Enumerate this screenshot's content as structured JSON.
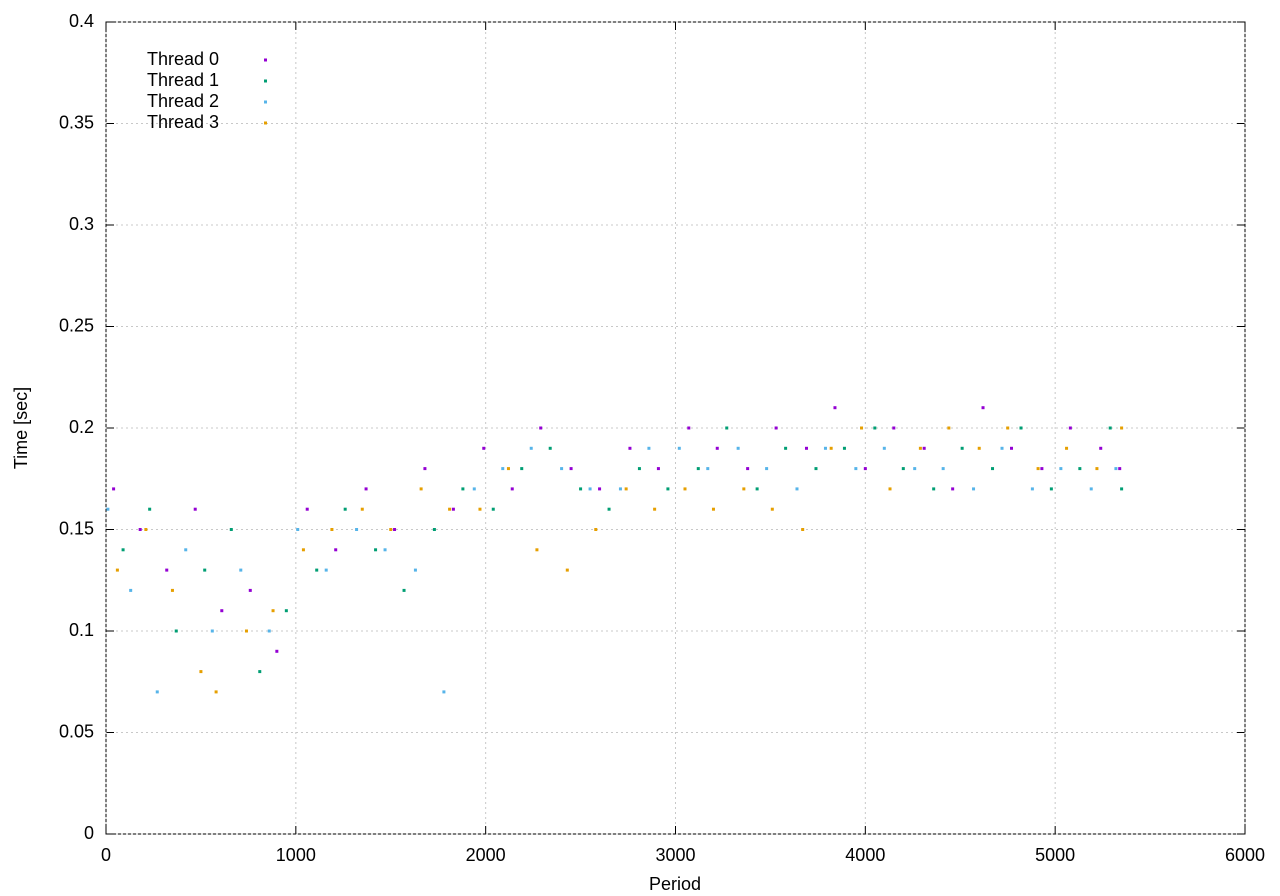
{
  "chart_data": {
    "type": "scatter",
    "xlabel": "Period",
    "ylabel": "Time [sec]",
    "xlim": [
      0,
      6000
    ],
    "xticks": [
      0,
      1000,
      2000,
      3000,
      4000,
      5000,
      6000
    ],
    "ylim": [
      0,
      0.4
    ],
    "yticks": [
      0,
      0.05,
      0.1,
      0.15,
      0.2,
      0.25,
      0.3,
      0.35,
      0.4
    ],
    "grid": true,
    "legend": "top-left",
    "series": [
      {
        "name": "Thread 0",
        "color": "#9400d3",
        "x": [
          40,
          180,
          320,
          470,
          610,
          760,
          900,
          1060,
          1210,
          1370,
          1520,
          1680,
          1830,
          1990,
          2140,
          2290,
          2450,
          2600,
          2760,
          2910,
          3070,
          3220,
          3380,
          3530,
          3690,
          3840,
          4000,
          4150,
          4310,
          4460,
          4620,
          4770,
          4930,
          5080,
          5240,
          5340
        ],
        "values": [
          0.17,
          0.15,
          0.13,
          0.16,
          0.11,
          0.12,
          0.09,
          0.16,
          0.14,
          0.17,
          0.15,
          0.18,
          0.16,
          0.19,
          0.17,
          0.2,
          0.18,
          0.17,
          0.19,
          0.18,
          0.2,
          0.19,
          0.18,
          0.2,
          0.19,
          0.21,
          0.18,
          0.2,
          0.19,
          0.17,
          0.21,
          0.19,
          0.18,
          0.2,
          0.19,
          0.18
        ]
      },
      {
        "name": "Thread 1",
        "color": "#009e73",
        "x": [
          90,
          230,
          370,
          520,
          660,
          810,
          950,
          1110,
          1260,
          1420,
          1570,
          1730,
          1880,
          2040,
          2190,
          2340,
          2500,
          2650,
          2810,
          2960,
          3120,
          3270,
          3430,
          3580,
          3740,
          3890,
          4050,
          4200,
          4360,
          4510,
          4670,
          4820,
          4980,
          5130,
          5290,
          5350
        ],
        "values": [
          0.14,
          0.16,
          0.1,
          0.13,
          0.15,
          0.08,
          0.11,
          0.13,
          0.16,
          0.14,
          0.12,
          0.15,
          0.17,
          0.16,
          0.18,
          0.19,
          0.17,
          0.16,
          0.18,
          0.17,
          0.18,
          0.2,
          0.17,
          0.19,
          0.18,
          0.19,
          0.2,
          0.18,
          0.17,
          0.19,
          0.18,
          0.2,
          0.17,
          0.18,
          0.2,
          0.17
        ]
      },
      {
        "name": "Thread 2",
        "color": "#56b4e9",
        "x": [
          10,
          130,
          270,
          420,
          560,
          710,
          860,
          1010,
          1160,
          1320,
          1470,
          1630,
          1780,
          1940,
          2090,
          2240,
          2400,
          2550,
          2710,
          2860,
          3020,
          3170,
          3330,
          3480,
          3640,
          3790,
          3950,
          4100,
          4260,
          4410,
          4570,
          4720,
          4880,
          5030,
          5190,
          5320
        ],
        "values": [
          0.16,
          0.12,
          0.07,
          0.14,
          0.1,
          0.13,
          0.1,
          0.15,
          0.13,
          0.15,
          0.14,
          0.13,
          0.07,
          0.17,
          0.18,
          0.19,
          0.18,
          0.17,
          0.17,
          0.19,
          0.19,
          0.18,
          0.19,
          0.18,
          0.17,
          0.19,
          0.18,
          0.19,
          0.18,
          0.18,
          0.17,
          0.19,
          0.17,
          0.18,
          0.17,
          0.18
        ]
      },
      {
        "name": "Thread 3",
        "color": "#e69f00",
        "x": [
          60,
          210,
          350,
          500,
          580,
          740,
          880,
          1040,
          1190,
          1350,
          1500,
          1660,
          1810,
          1970,
          2120,
          2270,
          2430,
          2580,
          2740,
          2890,
          3050,
          3200,
          3360,
          3510,
          3670,
          3820,
          3980,
          4130,
          4290,
          4440,
          4600,
          4750,
          4910,
          5060,
          5220,
          5350
        ],
        "values": [
          0.13,
          0.15,
          0.12,
          0.08,
          0.07,
          0.1,
          0.11,
          0.14,
          0.15,
          0.16,
          0.15,
          0.17,
          0.16,
          0.16,
          0.18,
          0.14,
          0.13,
          0.15,
          0.17,
          0.16,
          0.17,
          0.16,
          0.17,
          0.16,
          0.15,
          0.19,
          0.2,
          0.17,
          0.19,
          0.2,
          0.19,
          0.2,
          0.18,
          0.19,
          0.18,
          0.2
        ]
      }
    ]
  }
}
